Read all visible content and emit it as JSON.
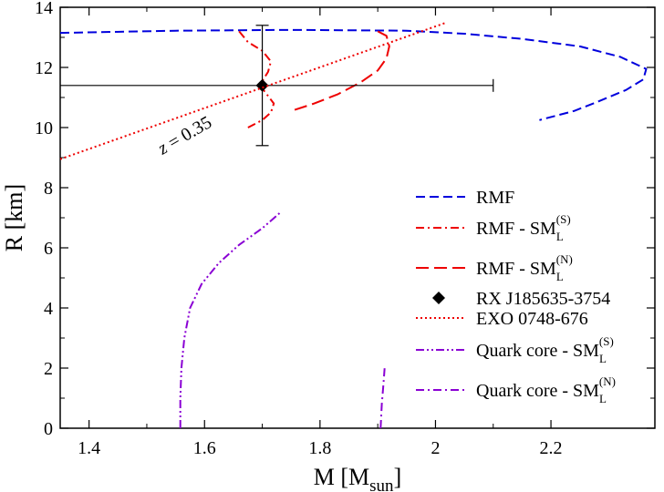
{
  "chart_data": {
    "type": "line",
    "xlabel": "M [M",
    "xlabel_sub": "sun",
    "xlabel_close": "]",
    "ylabel": "R [km]",
    "xlim": [
      1.35,
      2.38
    ],
    "ylim": [
      0,
      14
    ],
    "x_ticks": [
      1.4,
      1.6,
      1.8,
      2.0,
      2.2
    ],
    "x_tick_labels": [
      "1.4",
      "1.6",
      "1.8",
      "2",
      "2.2"
    ],
    "y_ticks": [
      0,
      2,
      4,
      6,
      8,
      10,
      12,
      14
    ],
    "y_tick_labels": [
      "0",
      "2",
      "4",
      "6",
      "8",
      "10",
      "12",
      "14"
    ],
    "grid": false,
    "legend_position": "right",
    "annotation": {
      "text_italic": "z",
      "text_rest": " = 0.35"
    },
    "series": [
      {
        "name": "RMF",
        "legend_main": "RMF",
        "legend_sup": "",
        "legend_sub": "",
        "legend_tail": "",
        "color": "#0000dd",
        "style": "dashed",
        "points": [
          [
            1.35,
            13.15
          ],
          [
            1.55,
            13.22
          ],
          [
            1.75,
            13.25
          ],
          [
            1.95,
            13.22
          ],
          [
            2.05,
            13.12
          ],
          [
            2.15,
            12.95
          ],
          [
            2.25,
            12.7
          ],
          [
            2.32,
            12.35
          ],
          [
            2.365,
            11.95
          ],
          [
            2.36,
            11.6
          ],
          [
            2.33,
            11.25
          ],
          [
            2.28,
            10.85
          ],
          [
            2.24,
            10.55
          ],
          [
            2.18,
            10.25
          ]
        ]
      },
      {
        "name": "RMF - SM_L^(S)",
        "legend_main": "RMF - SM",
        "legend_sup": "(S)",
        "legend_sub": "L",
        "legend_tail": "",
        "color": "#ee0000",
        "style": "dashdot",
        "points": [
          [
            1.66,
            13.2
          ],
          [
            1.675,
            12.85
          ],
          [
            1.7,
            12.55
          ],
          [
            1.715,
            12.2
          ],
          [
            1.71,
            11.85
          ],
          [
            1.7,
            11.55
          ],
          [
            1.7,
            11.3
          ],
          [
            1.71,
            11.05
          ],
          [
            1.72,
            10.8
          ],
          [
            1.715,
            10.5
          ],
          [
            1.7,
            10.25
          ],
          [
            1.67,
            9.95
          ]
        ]
      },
      {
        "name": "RMF - SM_L^(N)",
        "legend_main": "RMF - SM",
        "legend_sup": "(N)",
        "legend_sub": "L",
        "legend_tail": "",
        "color": "#ee0000",
        "style": "longdash",
        "points": [
          [
            1.9,
            13.2
          ],
          [
            1.915,
            13.05
          ],
          [
            1.92,
            12.7
          ],
          [
            1.915,
            12.3
          ],
          [
            1.9,
            11.9
          ],
          [
            1.87,
            11.5
          ],
          [
            1.83,
            11.1
          ],
          [
            1.79,
            10.8
          ],
          [
            1.75,
            10.55
          ]
        ]
      },
      {
        "name": "RX J185635-3754",
        "legend_main": "RX J185635-3754",
        "legend_sup": "",
        "legend_sub": "",
        "legend_tail": "",
        "color": "#000000",
        "style": "marker",
        "point": {
          "x": 1.7,
          "y": 11.4,
          "x_err": [
            1.35,
            2.1
          ],
          "y_err": [
            9.4,
            13.4
          ]
        }
      },
      {
        "name": "EXO 0748-676",
        "legend_main": "EXO 0748-676",
        "legend_sup": "",
        "legend_sub": "",
        "legend_tail": "",
        "color": "#ee0000",
        "style": "dotted",
        "points": [
          [
            1.35,
            8.95
          ],
          [
            2.02,
            13.5
          ]
        ]
      },
      {
        "name": "Quark core - SM_L^(S)",
        "legend_main": "Quark core - SM",
        "legend_sup": "(S)",
        "legend_sub": "L",
        "legend_tail": "",
        "color": "#8a00d4",
        "style": "dashdotdot",
        "points": [
          [
            1.558,
            0
          ],
          [
            1.558,
            1.0
          ],
          [
            1.56,
            2.0
          ],
          [
            1.565,
            3.0
          ],
          [
            1.575,
            4.0
          ],
          [
            1.595,
            4.8
          ],
          [
            1.625,
            5.5
          ],
          [
            1.66,
            6.1
          ],
          [
            1.7,
            6.65
          ],
          [
            1.73,
            7.15
          ]
        ]
      },
      {
        "name": "Quark core - SM_L^(N)",
        "legend_main": "Quark core - SM",
        "legend_sup": "(N)",
        "legend_sub": "L",
        "legend_tail": "",
        "color": "#8a00d4",
        "style": "dashdot",
        "points": [
          [
            1.905,
            0
          ],
          [
            1.907,
            0.8
          ],
          [
            1.91,
            1.5
          ],
          [
            1.912,
            2.05
          ]
        ]
      }
    ]
  }
}
